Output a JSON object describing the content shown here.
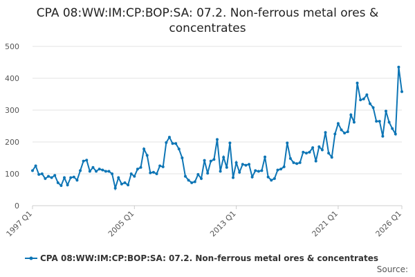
{
  "chart_data": {
    "type": "line",
    "title": "CPA 08:WW:IM:CP:BOP:SA: 07.2. Non-ferrous metal ores & concentrates",
    "categories": [
      "1997 Q1",
      null,
      null,
      null,
      null,
      null,
      null,
      null,
      null,
      null,
      null,
      null,
      null,
      null,
      null,
      null,
      null,
      null,
      null,
      null,
      null,
      null,
      null,
      null,
      null,
      null,
      null,
      null,
      null,
      null,
      null,
      null,
      "2005 Q1",
      null,
      null,
      null,
      null,
      null,
      null,
      null,
      null,
      null,
      null,
      null,
      null,
      null,
      null,
      null,
      null,
      null,
      null,
      null,
      null,
      null,
      null,
      null,
      null,
      null,
      null,
      null,
      null,
      null,
      null,
      null,
      "2013 Q1",
      null,
      null,
      null,
      null,
      null,
      null,
      null,
      null,
      null,
      null,
      null,
      null,
      null,
      null,
      null,
      null,
      null,
      null,
      null,
      null,
      null,
      null,
      null,
      null,
      null,
      null,
      null,
      null,
      null,
      null,
      null,
      "2021 Q1",
      null,
      null,
      null,
      null,
      null,
      null,
      null,
      null,
      null,
      null,
      null,
      null,
      null,
      null,
      null,
      null,
      null,
      null,
      null,
      "2026 Q1"
    ],
    "series": [
      {
        "name": "CPA 08:WW:IM:CP:BOP:SA: 07.2. Non-ferrous metal ores & concentrates",
        "color": "#0d75b5",
        "values": [
          110,
          125,
          98,
          100,
          85,
          92,
          88,
          95,
          72,
          63,
          88,
          65,
          88,
          90,
          80,
          110,
          140,
          143,
          108,
          120,
          108,
          115,
          112,
          108,
          108,
          100,
          55,
          88,
          68,
          72,
          65,
          100,
          92,
          115,
          120,
          178,
          158,
          103,
          105,
          100,
          125,
          122,
          198,
          215,
          195,
          195,
          178,
          150,
          92,
          80,
          72,
          75,
          98,
          85,
          142,
          102,
          140,
          145,
          208,
          108,
          152,
          120,
          197,
          88,
          135,
          105,
          130,
          127,
          130,
          90,
          110,
          108,
          110,
          153,
          90,
          80,
          85,
          112,
          115,
          122,
          197,
          148,
          135,
          132,
          135,
          168,
          165,
          168,
          182,
          140,
          185,
          175,
          230,
          165,
          152,
          225,
          258,
          238,
          228,
          232,
          285,
          262,
          385,
          332,
          335,
          348,
          320,
          308,
          265,
          265,
          218,
          297,
          262,
          242,
          225,
          435,
          358
        ]
      }
    ],
    "ylim": [
      0,
      500
    ],
    "yticks": [
      0,
      100,
      200,
      300,
      400,
      500
    ],
    "grid": true,
    "source": "Source:"
  }
}
